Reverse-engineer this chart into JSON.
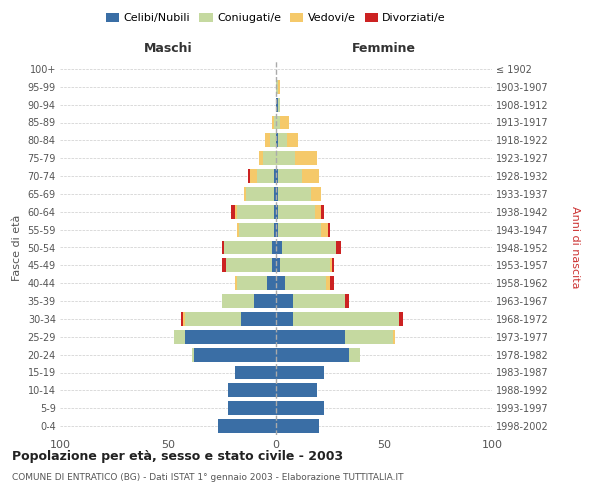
{
  "age_groups": [
    "0-4",
    "5-9",
    "10-14",
    "15-19",
    "20-24",
    "25-29",
    "30-34",
    "35-39",
    "40-44",
    "45-49",
    "50-54",
    "55-59",
    "60-64",
    "65-69",
    "70-74",
    "75-79",
    "80-84",
    "85-89",
    "90-94",
    "95-99",
    "100+"
  ],
  "birth_years": [
    "1998-2002",
    "1993-1997",
    "1988-1992",
    "1983-1987",
    "1978-1982",
    "1973-1977",
    "1968-1972",
    "1963-1967",
    "1958-1962",
    "1953-1957",
    "1948-1952",
    "1943-1947",
    "1938-1942",
    "1933-1937",
    "1928-1932",
    "1923-1927",
    "1918-1922",
    "1913-1917",
    "1908-1912",
    "1903-1907",
    "≤ 1902"
  ],
  "male_celibi": [
    27,
    22,
    22,
    19,
    38,
    42,
    16,
    10,
    4,
    2,
    2,
    1,
    1,
    1,
    1,
    0,
    0,
    0,
    0,
    0,
    0
  ],
  "male_coniugati": [
    0,
    0,
    0,
    0,
    1,
    5,
    26,
    15,
    14,
    21,
    22,
    16,
    17,
    13,
    8,
    6,
    3,
    1,
    0,
    0,
    0
  ],
  "male_vedovi": [
    0,
    0,
    0,
    0,
    0,
    0,
    1,
    0,
    1,
    0,
    0,
    1,
    1,
    1,
    3,
    2,
    2,
    1,
    0,
    0,
    0
  ],
  "male_divorziati": [
    0,
    0,
    0,
    0,
    0,
    0,
    1,
    0,
    0,
    2,
    1,
    0,
    2,
    0,
    1,
    0,
    0,
    0,
    0,
    0,
    0
  ],
  "female_celibi": [
    20,
    22,
    19,
    22,
    34,
    32,
    8,
    8,
    4,
    2,
    3,
    1,
    1,
    1,
    1,
    0,
    1,
    0,
    1,
    0,
    0
  ],
  "female_coniugati": [
    0,
    0,
    0,
    0,
    5,
    22,
    49,
    24,
    19,
    23,
    25,
    20,
    17,
    15,
    11,
    9,
    4,
    2,
    1,
    1,
    0
  ],
  "female_vedovi": [
    0,
    0,
    0,
    0,
    0,
    1,
    0,
    0,
    2,
    1,
    0,
    3,
    3,
    5,
    8,
    10,
    5,
    4,
    0,
    1,
    0
  ],
  "female_divorziati": [
    0,
    0,
    0,
    0,
    0,
    0,
    2,
    2,
    2,
    1,
    2,
    1,
    1,
    0,
    0,
    0,
    0,
    0,
    0,
    0,
    0
  ],
  "colors": {
    "celibi": "#3a6ea5",
    "coniugati": "#c5d9a0",
    "vedovi": "#f5c96a",
    "divorziati": "#cc2222"
  },
  "xlim": 100,
  "title": "Popolazione per età, sesso e stato civile - 2003",
  "subtitle": "COMUNE DI ENTRATICO (BG) - Dati ISTAT 1° gennaio 2003 - Elaborazione TUTTITALIA.IT",
  "ylabel_left": "Fasce di età",
  "ylabel_right": "Anni di nascita",
  "xlabel_left": "Maschi",
  "xlabel_right": "Femmine",
  "bg_color": "#ffffff",
  "grid_color": "#cccccc"
}
